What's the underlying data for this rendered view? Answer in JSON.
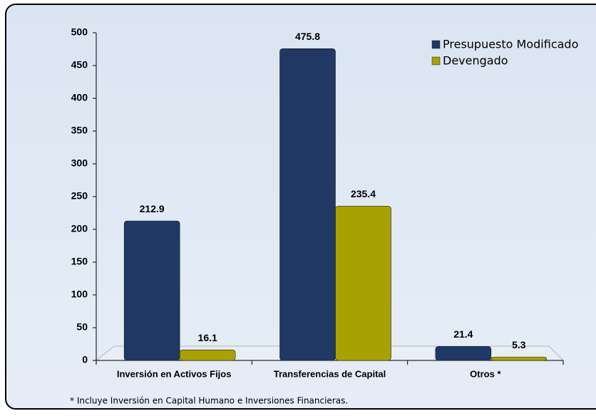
{
  "chart_data": {
    "type": "bar",
    "categories": [
      "Inversión en Activos Fijos",
      "Transferencias de Capital",
      "Otros *"
    ],
    "series": [
      {
        "name": "Presupuesto Modificado",
        "color": "#1f3864",
        "values": [
          212.9,
          475.8,
          21.4
        ]
      },
      {
        "name": "Devengado",
        "color": "#a8a200",
        "values": [
          16.1,
          235.4,
          5.3
        ]
      }
    ],
    "ylim": [
      0,
      500
    ],
    "yticks": [
      0,
      50,
      100,
      150,
      200,
      250,
      300,
      350,
      400,
      450,
      500
    ],
    "legend": "top-right",
    "footnote": "* Incluye Inversión en Capital Humano e Inversiones Financieras."
  }
}
